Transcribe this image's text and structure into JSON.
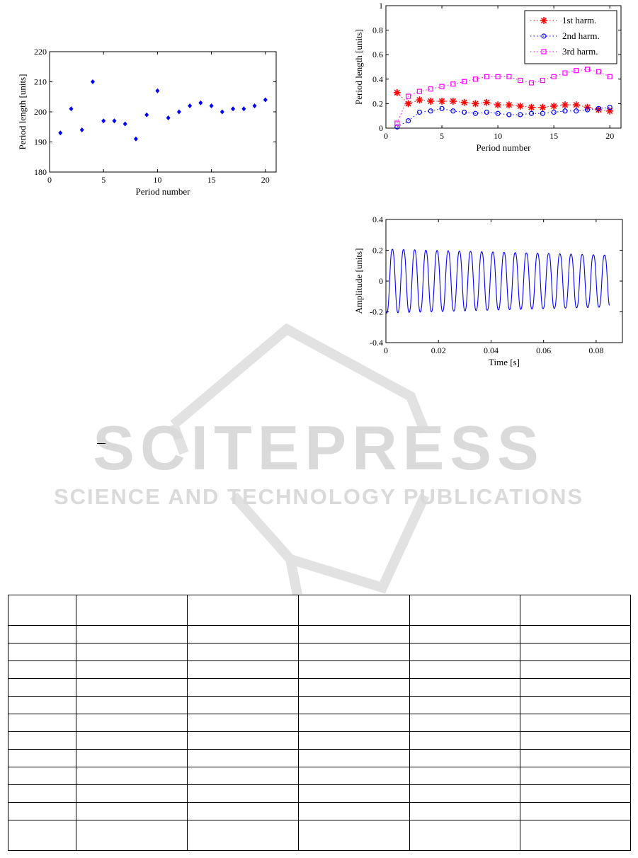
{
  "chart_data": [
    {
      "type": "scatter",
      "title": "",
      "xlabel": "Period number",
      "ylabel": "Period length [units]",
      "xlim": [
        0,
        21
      ],
      "ylim": [
        180,
        220
      ],
      "xticks": [
        0,
        5,
        10,
        15,
        20
      ],
      "yticks": [
        180,
        190,
        200,
        210,
        220
      ],
      "grid": false,
      "series": [
        {
          "color": "#0000ff",
          "marker": "diamond",
          "x": [
            1,
            2,
            3,
            4,
            5,
            6,
            7,
            8,
            9,
            10,
            11,
            12,
            13,
            14,
            15,
            16,
            17,
            18,
            19,
            20
          ],
          "y": [
            193,
            201,
            194,
            210,
            197,
            197,
            196,
            191,
            199,
            207,
            198,
            200,
            202,
            203,
            202,
            200,
            201,
            201,
            202,
            204
          ]
        }
      ]
    },
    {
      "type": "line",
      "title": "",
      "xlabel": "Period number",
      "ylabel": "Period length [units]",
      "xlim": [
        0,
        21
      ],
      "ylim": [
        0,
        1
      ],
      "xticks": [
        0,
        5,
        10,
        15,
        20
      ],
      "yticks": [
        0,
        0.2,
        0.4,
        0.6,
        0.8,
        1
      ],
      "grid": false,
      "legend": "top-right",
      "x": [
        1,
        2,
        3,
        4,
        5,
        6,
        7,
        8,
        9,
        10,
        11,
        12,
        13,
        14,
        15,
        16,
        17,
        18,
        19,
        20
      ],
      "series": [
        {
          "name": "1st harm.",
          "color": "#ff0000",
          "marker": "star",
          "line": "dotted",
          "values": [
            0.29,
            0.2,
            0.23,
            0.22,
            0.22,
            0.22,
            0.21,
            0.2,
            0.21,
            0.19,
            0.19,
            0.18,
            0.17,
            0.17,
            0.18,
            0.19,
            0.19,
            0.17,
            0.15,
            0.14
          ]
        },
        {
          "name": "2nd harm.",
          "color": "#0000ff",
          "marker": "circle",
          "line": "dotted",
          "values": [
            0.01,
            0.06,
            0.13,
            0.14,
            0.16,
            0.14,
            0.13,
            0.12,
            0.13,
            0.12,
            0.11,
            0.11,
            0.12,
            0.12,
            0.13,
            0.14,
            0.14,
            0.15,
            0.16,
            0.17
          ]
        },
        {
          "name": "3rd harm.",
          "color": "#ff00ff",
          "marker": "square",
          "line": "dotted",
          "values": [
            0.04,
            0.26,
            0.3,
            0.32,
            0.34,
            0.36,
            0.38,
            0.4,
            0.42,
            0.42,
            0.42,
            0.39,
            0.37,
            0.39,
            0.42,
            0.45,
            0.47,
            0.48,
            0.46,
            0.42
          ]
        }
      ]
    },
    {
      "type": "line",
      "title": "",
      "xlabel": "Time [s]",
      "ylabel": "Amplitude [units]",
      "xlim": [
        0,
        0.09
      ],
      "ylim": [
        -0.4,
        0.4
      ],
      "xticks": [
        0,
        0.02,
        0.04,
        0.06,
        0.08
      ],
      "yticks": [
        -0.4,
        -0.2,
        0,
        0.2,
        0.4
      ],
      "grid": false,
      "series": [
        {
          "color": "#0000ff",
          "waveform": "sinusoid",
          "t_start": 0,
          "t_end": 0.085,
          "cycles": 20,
          "amplitude_start": 0.22,
          "amplitude_end": 0.18,
          "final_value": -0.09
        }
      ]
    }
  ],
  "watermark": {
    "brand": "SCITEPRESS",
    "tagline": "SCIENCE AND TECHNOLOGY PUBLICATIONS",
    "color": "#d8d8d8"
  },
  "table": {
    "rows": 13,
    "columns": 6
  }
}
